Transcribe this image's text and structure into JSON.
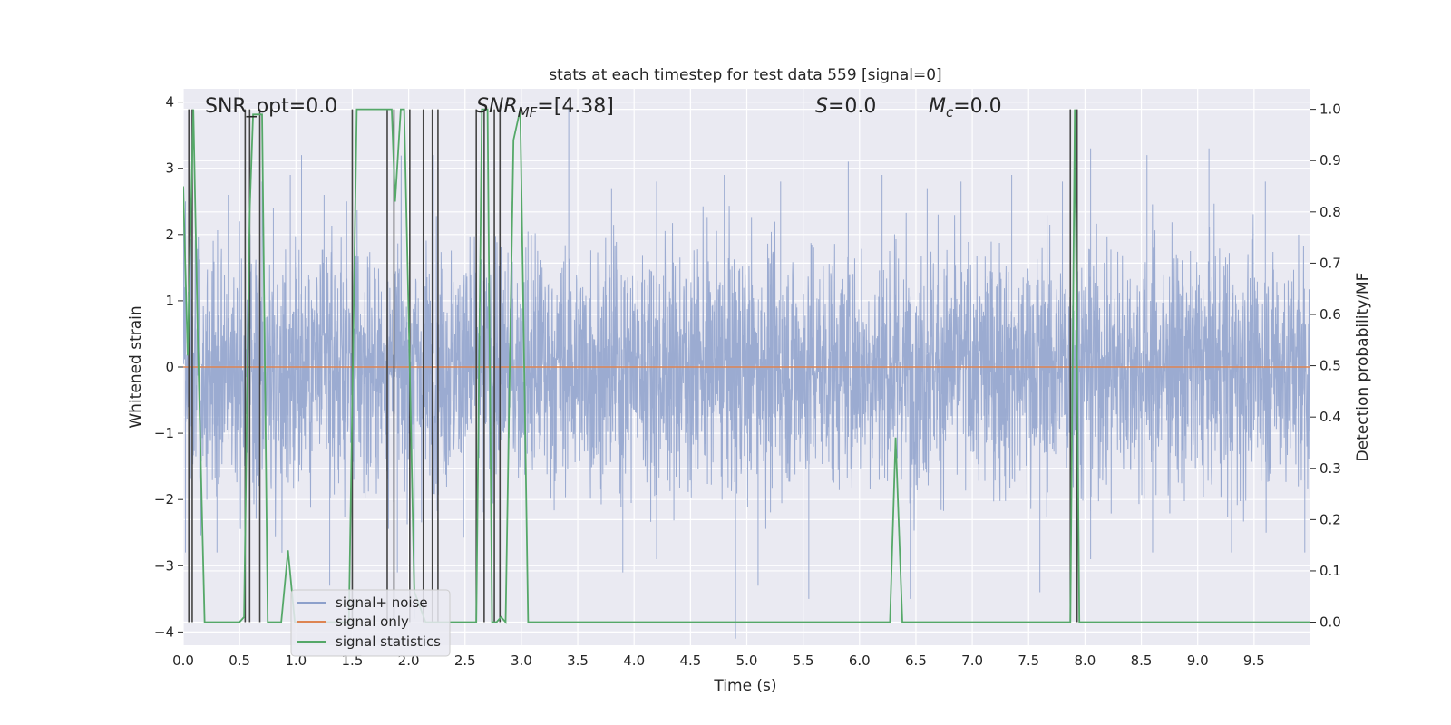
{
  "chart_data": {
    "type": "line",
    "title": "stats at each timestep for test data 559 [signal=0]",
    "xlabel": "Time (s)",
    "ylabel_left": "Whitened strain",
    "ylabel_right": "Detection probability/MF",
    "xlim": [
      0,
      10
    ],
    "ylim_left": [
      -4.2,
      4.2
    ],
    "ylim_right": [
      -0.045,
      1.04
    ],
    "grid": true,
    "background": "#eaeaf2",
    "x_ticks": [
      "0.0",
      "0.5",
      "1.0",
      "1.5",
      "2.0",
      "2.5",
      "3.0",
      "3.5",
      "4.0",
      "4.5",
      "5.0",
      "5.5",
      "6.0",
      "6.5",
      "7.0",
      "7.5",
      "8.0",
      "8.5",
      "9.0",
      "9.5"
    ],
    "y_ticks_left": [
      "4",
      "3",
      "2",
      "1",
      "0",
      "−1",
      "−2",
      "−3",
      "−4"
    ],
    "y_ticks_right": [
      "1.0",
      "0.9",
      "0.8",
      "0.7",
      "0.6",
      "0.5",
      "0.4",
      "0.3",
      "0.2",
      "0.1",
      "0.0"
    ],
    "annotations": {
      "snr_opt": "SNR_opt=0.0",
      "snr_mf_sym": "SNR",
      "snr_mf_sub": "MF",
      "snr_mf_val": "=[4.38]",
      "s_sym": "S",
      "s_val": "=0.0",
      "mc_sym": "M",
      "mc_sub": "c",
      "mc_val": "=0.0"
    },
    "legend": {
      "position": "lower-left",
      "entries": [
        {
          "label": "signal+ noise",
          "color": "#8da0cb"
        },
        {
          "label": "signal only",
          "color": "#dd8452"
        },
        {
          "label": "signal statistics",
          "color": "#55a868"
        }
      ]
    },
    "series": [
      {
        "name": "signal+ noise",
        "axis": "left",
        "color": "#8da0cb",
        "style": "dense noise, sampling 0.00244 s, amplitude range about -4.1 to 3.9, core band about -1.7 to 1.5",
        "peaks_up": [
          [
            0.02,
            2.5
          ],
          [
            0.4,
            2.6
          ],
          [
            0.5,
            2.2
          ],
          [
            0.7,
            2.8
          ],
          [
            0.8,
            2.4
          ],
          [
            0.95,
            2.9
          ],
          [
            1.05,
            3.2
          ],
          [
            1.25,
            2.6
          ],
          [
            1.45,
            2.5
          ],
          [
            2.22,
            3.2
          ],
          [
            2.6,
            3.5
          ],
          [
            3.42,
            3.9
          ],
          [
            3.8,
            2.7
          ],
          [
            4.2,
            2.8
          ],
          [
            4.8,
            2.9
          ],
          [
            5.3,
            2.8
          ],
          [
            5.9,
            3.1
          ],
          [
            6.2,
            2.9
          ],
          [
            6.6,
            2.7
          ],
          [
            6.9,
            2.8
          ],
          [
            7.35,
            2.9
          ],
          [
            7.8,
            2.8
          ],
          [
            8.05,
            3.3
          ],
          [
            8.55,
            3.2
          ],
          [
            9.1,
            3.3
          ],
          [
            9.6,
            2.8
          ]
        ],
        "peaks_down": [
          [
            0.02,
            -2.8
          ],
          [
            0.3,
            -2.8
          ],
          [
            1.3,
            -3.3
          ],
          [
            1.9,
            -3.1
          ],
          [
            2.05,
            -3.8
          ],
          [
            3.9,
            -3.1
          ],
          [
            4.2,
            -2.9
          ],
          [
            4.9,
            -4.1
          ],
          [
            5.1,
            -3.3
          ],
          [
            5.55,
            -3.5
          ],
          [
            6.45,
            -3.5
          ],
          [
            7.6,
            -3.4
          ],
          [
            8.05,
            -2.9
          ],
          [
            8.6,
            -2.8
          ],
          [
            9.3,
            -2.8
          ],
          [
            9.95,
            -2.8
          ]
        ]
      },
      {
        "name": "signal only",
        "axis": "left",
        "color": "#dd8452",
        "x": [
          0,
          10
        ],
        "y": [
          0,
          0
        ]
      },
      {
        "name": "signal statistics",
        "axis": "right",
        "color": "#55a868",
        "x": [
          0,
          0.04,
          0.09,
          0.13,
          0.19,
          0.5,
          0.54,
          0.59,
          0.62,
          0.7,
          0.75,
          0.87,
          0.93,
          0.99,
          1.03,
          1.47,
          1.54,
          1.6,
          1.85,
          1.88,
          1.93,
          1.96,
          2.0,
          2.05,
          2.15,
          2.2,
          2.25,
          2.6,
          2.65,
          2.7,
          2.74,
          2.78,
          2.82,
          2.86,
          2.93,
          2.99,
          3.06,
          6.27,
          6.32,
          6.38,
          7.87,
          7.91,
          7.95,
          8.0,
          10.0
        ],
        "y": [
          0.85,
          0.52,
          1.0,
          0.55,
          0.0,
          0.0,
          0.01,
          0.8,
          0.99,
          0.99,
          0.0,
          0.0,
          0.14,
          0.0,
          0.0,
          0.0,
          1.0,
          1.0,
          1.0,
          0.82,
          1.0,
          1.0,
          0.6,
          0.06,
          0.0,
          0.0,
          0.0,
          0.0,
          1.0,
          1.0,
          0.0,
          0.0,
          0.01,
          0.0,
          0.94,
          1.0,
          0.0,
          0.0,
          0.36,
          0.0,
          0.0,
          1.0,
          0.0,
          0.0,
          0.0
        ]
      },
      {
        "name": "",
        "axis": "right",
        "color": "#444444",
        "style": "vertical markers spanning 0 to 1",
        "x": [
          0.05,
          0.08,
          0.55,
          0.59,
          0.68,
          1.5,
          1.81,
          1.87,
          2.01,
          2.13,
          2.21,
          2.26,
          2.6,
          2.67,
          2.76,
          2.81,
          7.87,
          7.93
        ]
      }
    ]
  }
}
